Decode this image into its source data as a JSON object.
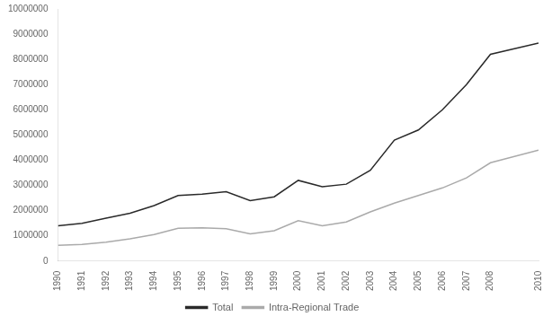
{
  "chart_data": {
    "type": "line",
    "x": [
      1990,
      1991,
      1992,
      1993,
      1994,
      1995,
      1996,
      1997,
      1998,
      1999,
      2000,
      2001,
      2002,
      2003,
      2004,
      2005,
      2006,
      2007,
      2008,
      2010
    ],
    "series": [
      {
        "name": "Total",
        "color": "#2a2a2a",
        "values": [
          1400000,
          1500000,
          1700000,
          1900000,
          2200000,
          2600000,
          2650000,
          2750000,
          2400000,
          2550000,
          3200000,
          2950000,
          3050000,
          3600000,
          4800000,
          5200000,
          6000000,
          7000000,
          8200000,
          8650000
        ]
      },
      {
        "name": "Intra-Regional Trade",
        "color": "#aaaaaa",
        "values": [
          620000,
          660000,
          750000,
          880000,
          1050000,
          1300000,
          1320000,
          1280000,
          1080000,
          1200000,
          1600000,
          1400000,
          1550000,
          1950000,
          2300000,
          2600000,
          2900000,
          3300000,
          3900000,
          4400000
        ]
      }
    ],
    "xlim": [
      1990,
      2010
    ],
    "xticks": [
      1990,
      1991,
      1992,
      1993,
      1994,
      1995,
      1996,
      1997,
      1998,
      1999,
      2000,
      2001,
      2002,
      2003,
      2004,
      2005,
      2006,
      2007,
      2008,
      2010
    ],
    "ylim": [
      0,
      10000000
    ],
    "yticks": [
      0,
      1000000,
      2000000,
      3000000,
      4000000,
      5000000,
      6000000,
      7000000,
      8000000,
      9000000,
      10000000
    ],
    "grid": false,
    "legend": "bottom"
  }
}
